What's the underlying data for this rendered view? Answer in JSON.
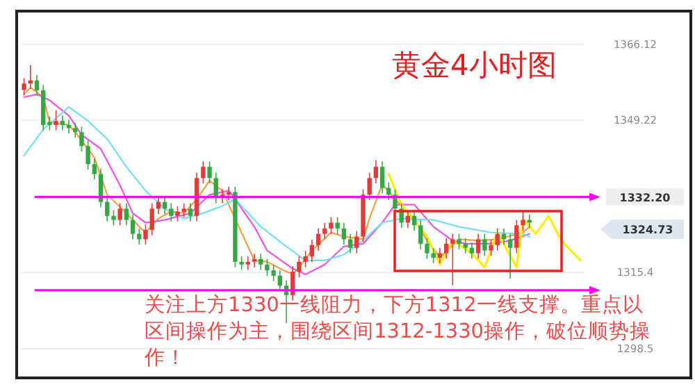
{
  "chart_data": {
    "type": "candlestick",
    "title": "黄金4小时图",
    "annotations": [
      "关注上方1330一线阻力，下方1312一线支撑。重点以区间操作为主，围绕区间1312-1330操作，破位顺势操作！",
      "1324.73"
    ],
    "categories": [
      null,
      null,
      null,
      null,
      null,
      null,
      null,
      null,
      null,
      null,
      null,
      null,
      null,
      null,
      null,
      null,
      null,
      null,
      null,
      null,
      null,
      null,
      null,
      null,
      null,
      null,
      null,
      null,
      null,
      null,
      null,
      null,
      null,
      null,
      null,
      null,
      null,
      null,
      null,
      null,
      null,
      null,
      null,
      null,
      null,
      null,
      null,
      null,
      null,
      null,
      null,
      null,
      null,
      null,
      null,
      null,
      null,
      null,
      null,
      null,
      null,
      null,
      null,
      null,
      null,
      null,
      null,
      null,
      null,
      null,
      null,
      null,
      null,
      null,
      null,
      null,
      null,
      null,
      null,
      null,
      null,
      null,
      null,
      null,
      null,
      null,
      null,
      null
    ],
    "ohlc": [
      [
        1356.0,
        1358.6,
        1354.8,
        1357.4
      ],
      [
        1357.4,
        1361.5,
        1356.2,
        1358.1
      ],
      [
        1358.1,
        1359.3,
        1354.7,
        1355.9
      ],
      [
        1355.9,
        1357.1,
        1347.0,
        1348.2
      ],
      [
        1348.9,
        1350.1,
        1347.0,
        1348.2
      ],
      [
        1348.2,
        1351.5,
        1347.0,
        1349.1
      ],
      [
        1349.1,
        1350.3,
        1347.0,
        1348.2
      ],
      [
        1348.2,
        1349.4,
        1346.3,
        1347.5
      ],
      [
        1347.5,
        1348.7,
        1345.4,
        1346.6
      ],
      [
        1346.6,
        1347.8,
        1342.3,
        1343.5
      ],
      [
        1343.5,
        1344.7,
        1338.3,
        1339.5
      ],
      [
        1339.5,
        1340.7,
        1336.1,
        1337.3
      ],
      [
        1337.3,
        1338.5,
        1329.9,
        1331.1
      ],
      [
        1331.1,
        1332.3,
        1326.8,
        1328.0
      ],
      [
        1328.0,
        1329.2,
        1325.9,
        1327.1
      ],
      [
        1327.1,
        1330.8,
        1325.9,
        1329.6
      ],
      [
        1329.6,
        1330.8,
        1325.9,
        1327.1
      ],
      [
        1327.1,
        1328.3,
        1322.8,
        1324.0
      ],
      [
        1324.0,
        1325.2,
        1321.6,
        1322.8
      ],
      [
        1322.8,
        1326.1,
        1321.6,
        1324.9
      ],
      [
        1324.9,
        1330.8,
        1323.7,
        1329.6
      ],
      [
        1329.6,
        1332.3,
        1328.4,
        1331.1
      ],
      [
        1331.1,
        1332.3,
        1328.4,
        1329.6
      ],
      [
        1329.6,
        1330.8,
        1326.8,
        1328.0
      ],
      [
        1328.0,
        1330.1,
        1326.8,
        1328.9
      ],
      [
        1328.9,
        1330.8,
        1327.7,
        1329.6
      ],
      [
        1329.6,
        1330.8,
        1326.8,
        1328.0
      ],
      [
        1328.0,
        1337.6,
        1326.8,
        1336.4
      ],
      [
        1336.4,
        1340.1,
        1335.2,
        1338.9
      ],
      [
        1338.9,
        1340.1,
        1335.2,
        1336.4
      ],
      [
        1336.4,
        1337.6,
        1330.8,
        1332.0
      ],
      [
        1332.0,
        1333.9,
        1330.8,
        1332.7
      ],
      [
        1332.7,
        1334.5,
        1331.5,
        1333.3
      ],
      [
        1333.3,
        1334.5,
        1316.6,
        1317.8
      ],
      [
        1317.8,
        1319.0,
        1316.0,
        1317.2
      ],
      [
        1317.2,
        1319.0,
        1316.0,
        1317.8
      ],
      [
        1317.8,
        1319.6,
        1316.6,
        1318.4
      ],
      [
        1318.4,
        1319.6,
        1316.0,
        1317.2
      ],
      [
        1317.2,
        1318.4,
        1314.7,
        1315.9
      ],
      [
        1315.9,
        1317.1,
        1313.5,
        1314.7
      ],
      [
        1314.7,
        1315.9,
        1311.3,
        1312.5
      ],
      [
        1312.5,
        1313.7,
        1304.2,
        1310.4
      ],
      [
        1310.4,
        1316.8,
        1309.2,
        1315.6
      ],
      [
        1315.6,
        1319.0,
        1314.4,
        1317.8
      ],
      [
        1317.8,
        1320.2,
        1316.6,
        1319.0
      ],
      [
        1319.0,
        1322.7,
        1317.8,
        1321.5
      ],
      [
        1321.5,
        1325.2,
        1320.3,
        1324.0
      ],
      [
        1324.0,
        1326.4,
        1322.8,
        1325.2
      ],
      [
        1325.2,
        1327.7,
        1324.0,
        1326.5
      ],
      [
        1326.5,
        1327.7,
        1324.0,
        1325.2
      ],
      [
        1325.2,
        1326.4,
        1321.6,
        1322.8
      ],
      [
        1322.8,
        1324.0,
        1319.7,
        1320.9
      ],
      [
        1320.9,
        1324.6,
        1319.7,
        1323.4
      ],
      [
        1323.4,
        1333.9,
        1322.2,
        1332.7
      ],
      [
        1332.7,
        1337.6,
        1331.5,
        1336.4
      ],
      [
        1336.4,
        1340.4,
        1335.2,
        1338.9
      ],
      [
        1338.9,
        1340.1,
        1333.0,
        1334.2
      ],
      [
        1334.2,
        1335.4,
        1331.5,
        1332.7
      ],
      [
        1332.7,
        1333.9,
        1328.4,
        1329.6
      ],
      [
        1329.6,
        1330.8,
        1325.3,
        1326.5
      ],
      [
        1326.5,
        1329.2,
        1325.3,
        1328.0
      ],
      [
        1328.0,
        1329.2,
        1324.7,
        1325.9
      ],
      [
        1325.9,
        1327.1,
        1320.6,
        1321.8
      ],
      [
        1321.8,
        1323.0,
        1318.5,
        1319.7
      ],
      [
        1319.7,
        1320.9,
        1317.5,
        1318.7
      ],
      [
        1318.7,
        1320.9,
        1317.5,
        1319.7
      ],
      [
        1319.7,
        1323.0,
        1318.5,
        1321.8
      ],
      [
        1321.8,
        1324.0,
        1312.6,
        1322.8
      ],
      [
        1322.8,
        1324.0,
        1320.6,
        1321.8
      ],
      [
        1321.8,
        1323.0,
        1319.7,
        1320.9
      ],
      [
        1320.9,
        1322.1,
        1318.5,
        1319.7
      ],
      [
        1319.7,
        1324.0,
        1318.5,
        1322.8
      ],
      [
        1322.8,
        1324.0,
        1319.1,
        1320.3
      ],
      [
        1320.3,
        1322.7,
        1319.1,
        1321.5
      ],
      [
        1321.5,
        1325.2,
        1320.3,
        1324.0
      ],
      [
        1324.0,
        1325.2,
        1321.6,
        1322.8
      ],
      [
        1322.8,
        1324.0,
        1314.1,
        1320.9
      ],
      [
        1320.9,
        1327.1,
        1319.7,
        1325.9
      ],
      [
        1325.9,
        1328.9,
        1324.7,
        1327.1
      ],
      [
        1327.1,
        1328.3,
        1325.3,
        1326.5
      ],
      null,
      null,
      null,
      null,
      null,
      null,
      null,
      null
    ],
    "series": [
      {
        "type": "line",
        "color": "#ff9a3c",
        "values": [
          1355.0,
          1356.5,
          null,
          1354.4,
          1348.8,
          null,
          null,
          1348.2,
          1346.6,
          null,
          null,
          1341.0,
          null,
          1332.7,
          null,
          null,
          1328.6,
          null,
          1325.6,
          1324.3,
          null,
          1327.4,
          null,
          1329.0,
          null,
          1328.6,
          null,
          1331.7,
          null,
          1335.8,
          null,
          1333.6,
          null,
          1327.4,
          null,
          null,
          1318.1,
          null,
          1317.8,
          null,
          1316.3,
          null,
          1315.0,
          1316.6,
          null,
          1320.3,
          null,
          null,
          1324.3,
          null,
          1323.4,
          null,
          null,
          1322.8,
          1327.4,
          null,
          1335.1,
          null,
          1331.7,
          null,
          null,
          1327.4,
          null,
          1322.5,
          null,
          1318.8,
          null,
          null,
          1322.8,
          null,
          null,
          1322.5,
          null,
          null,
          1322.8,
          null,
          null,
          null,
          1324.3,
          1325.6,
          null,
          null,
          null,
          null,
          null,
          null,
          null,
          null
        ]
      },
      {
        "type": "line",
        "color": "#f050e8",
        "values": [
          1354.4,
          null,
          1355.0,
          null,
          1353.7,
          null,
          null,
          1350.3,
          null,
          1346.0,
          null,
          null,
          1342.9,
          null,
          null,
          1334.8,
          null,
          1328.6,
          null,
          1326.5,
          null,
          null,
          1327.1,
          null,
          null,
          null,
          1328.6,
          null,
          null,
          1332.7,
          null,
          null,
          1333.6,
          1331.7,
          null,
          null,
          1325.6,
          null,
          1320.3,
          null,
          null,
          null,
          1316.3,
          null,
          1315.0,
          null,
          null,
          1317.2,
          null,
          null,
          1321.2,
          null,
          null,
          1321.8,
          null,
          null,
          1326.5,
          null,
          1330.5,
          null,
          null,
          1330.5,
          null,
          null,
          1325.6,
          null,
          null,
          1322.5,
          null,
          1321.8,
          null,
          null,
          null,
          1321.8,
          null,
          null,
          1322.5,
          null,
          null,
          1324.0,
          null,
          null,
          null,
          null,
          null,
          null,
          null,
          null
        ]
      },
      {
        "type": "line",
        "color": "#6fe0ef",
        "values": [
          1341.4,
          null,
          null,
          1347.2,
          null,
          null,
          null,
          1352.2,
          null,
          null,
          1349.1,
          null,
          null,
          1345.1,
          null,
          null,
          1338.9,
          null,
          null,
          1333.6,
          null,
          null,
          1329.6,
          null,
          null,
          1327.4,
          null,
          null,
          1328.6,
          null,
          null,
          1330.2,
          null,
          1331.7,
          null,
          null,
          null,
          1325.6,
          null,
          null,
          null,
          1321.2,
          null,
          null,
          1318.1,
          null,
          null,
          1318.1,
          null,
          null,
          1319.4,
          null,
          null,
          1322.5,
          null,
          null,
          1326.5,
          null,
          null,
          1327.4,
          null,
          null,
          null,
          null,
          1327.1,
          null,
          null,
          null,
          1325.6,
          null,
          null,
          null,
          null,
          1324.3,
          null,
          null,
          null,
          null,
          1324.0,
          1323.4,
          null,
          null,
          null,
          null,
          null,
          null,
          null,
          null
        ]
      },
      {
        "type": "line",
        "color": "#ffee00",
        "values": [
          null,
          null,
          null,
          null,
          null,
          null,
          null,
          null,
          null,
          null,
          null,
          null,
          null,
          null,
          null,
          null,
          null,
          null,
          null,
          null,
          null,
          null,
          null,
          null,
          null,
          null,
          null,
          null,
          null,
          null,
          null,
          null,
          null,
          null,
          null,
          null,
          null,
          null,
          null,
          null,
          null,
          null,
          null,
          null,
          null,
          null,
          null,
          null,
          null,
          null,
          null,
          null,
          null,
          null,
          null,
          null,
          null,
          1337.3,
          null,
          1330.5,
          null,
          null,
          null,
          1323.4,
          null,
          1317.2,
          null,
          1322.5,
          null,
          null,
          1319.7,
          null,
          1316.6,
          null,
          1324.3,
          null,
          null,
          1316.6,
          1327.4,
          null,
          1324.0,
          null,
          1328.0,
          null,
          1322.5,
          null,
          null,
          1318.1
        ]
      }
    ],
    "ylim": [
      1292.0,
      1373.5
    ],
    "yticks": [
      1298.5,
      1315.4,
      1349.22,
      1366.12
    ],
    "grid": "y",
    "ref_lines": [
      {
        "axis": "y",
        "value": 1332.2,
        "label": "1332.20",
        "color": "#ff00ff"
      },
      {
        "axis": "y",
        "value": 1311.5,
        "color": "#ff00ff"
      }
    ]
  }
}
